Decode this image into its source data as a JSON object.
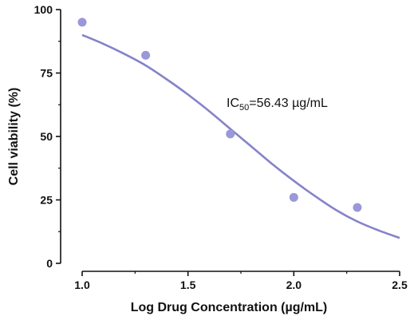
{
  "chart_data": {
    "type": "scatter",
    "xlabel": "Log Drug Concentration (µg/mL)",
    "ylabel": "Cell viability (%)",
    "xlim": [
      1.0,
      2.5
    ],
    "ylim": [
      0,
      100
    ],
    "x_ticks": [
      1.0,
      1.5,
      2.0,
      2.5
    ],
    "x_tick_labels": [
      "1.0",
      "1.5",
      "2.0",
      "2.5"
    ],
    "y_ticks": [
      0,
      25,
      50,
      75,
      100
    ],
    "y_tick_labels": [
      "0",
      "25",
      "50",
      "75",
      "100"
    ],
    "series": [
      {
        "x": [
          1.0,
          1.3,
          1.7,
          2.0,
          2.3
        ],
        "y": [
          95,
          82,
          51,
          26,
          22
        ]
      }
    ],
    "fit_curve": {
      "x": [
        1.0,
        1.1,
        1.2,
        1.3,
        1.4,
        1.5,
        1.6,
        1.7,
        1.8,
        1.9,
        2.0,
        2.1,
        2.2,
        2.3,
        2.4,
        2.5
      ],
      "y": [
        90,
        86.5,
        82.5,
        78,
        72.5,
        66.5,
        60,
        53,
        46,
        39,
        32.5,
        26.5,
        21,
        16.5,
        13,
        10
      ]
    },
    "annotation": {
      "main": "IC",
      "subscript": "50",
      "rest": "=56.43 µg/mL"
    },
    "colors": {
      "marker": "#9a98d8",
      "curve": "#8583c8",
      "axis": "#111111"
    },
    "grid": false
  }
}
